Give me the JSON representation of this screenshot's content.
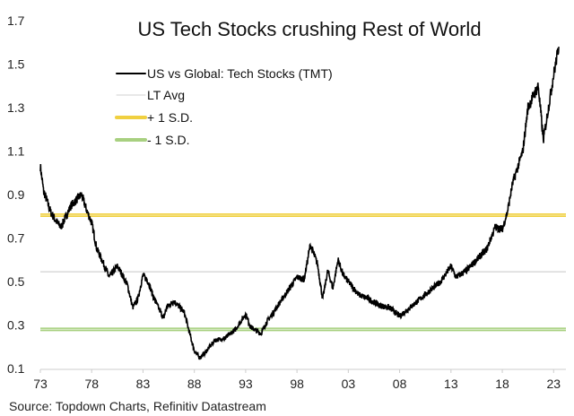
{
  "chart_data": {
    "type": "line",
    "title": "US Tech Stocks crushing Rest of World",
    "source": "Source: Topdown Charts, Refinitiv Datastream",
    "xlim": [
      1973,
      2023.5
    ],
    "ylim": [
      0.1,
      1.7
    ],
    "x_tick_labels": [
      "73",
      "78",
      "83",
      "88",
      "93",
      "98",
      "03",
      "08",
      "13",
      "18",
      "23"
    ],
    "x_tick_values": [
      1973,
      1978,
      1983,
      1988,
      1993,
      1998,
      2003,
      2008,
      2013,
      2018,
      2023
    ],
    "y_ticks": [
      "0.1",
      "0.3",
      "0.5",
      "0.7",
      "0.9",
      "1.1",
      "1.3",
      "1.5",
      "1.7"
    ],
    "grid": false,
    "legend_placement": "top-left",
    "series": [
      {
        "name": "US vs Global: Tech Stocks (TMT)",
        "color": "#000000",
        "x": [
          1973.0,
          1973.3,
          1974,
          1974.5,
          1975,
          1976,
          1977,
          1977.5,
          1978,
          1978.5,
          1979,
          1979.7,
          1980.5,
          1981,
          1981.5,
          1982,
          1982.5,
          1983,
          1983.5,
          1984,
          1985,
          1985.3,
          1986,
          1987,
          1987.5,
          1988,
          1988.5,
          1989,
          1990,
          1991,
          1992,
          1993,
          1993.5,
          1994.5,
          1995,
          1996,
          1997,
          1998,
          1998.7,
          1999.3,
          2000,
          2000.5,
          2001,
          2001.5,
          2002,
          2002.5,
          2003,
          2004,
          2005,
          2006,
          2007,
          2008,
          2009,
          2010,
          2011,
          2012,
          2013,
          2013.5,
          2014.5,
          2015.5,
          2016.5,
          2017.3,
          2018,
          2018.5,
          2019,
          2020,
          2020.5,
          2021,
          2021.5,
          2022,
          2022.5,
          2023,
          2023.5
        ],
        "y": [
          1.03,
          0.92,
          0.82,
          0.78,
          0.75,
          0.85,
          0.9,
          0.83,
          0.77,
          0.65,
          0.6,
          0.52,
          0.57,
          0.53,
          0.48,
          0.38,
          0.42,
          0.53,
          0.5,
          0.43,
          0.33,
          0.38,
          0.41,
          0.36,
          0.27,
          0.18,
          0.15,
          0.17,
          0.23,
          0.24,
          0.28,
          0.35,
          0.29,
          0.26,
          0.31,
          0.38,
          0.45,
          0.52,
          0.51,
          0.67,
          0.58,
          0.42,
          0.55,
          0.47,
          0.6,
          0.53,
          0.5,
          0.44,
          0.42,
          0.39,
          0.38,
          0.34,
          0.38,
          0.42,
          0.46,
          0.5,
          0.57,
          0.52,
          0.55,
          0.6,
          0.65,
          0.75,
          0.74,
          0.82,
          0.95,
          1.1,
          1.3,
          1.35,
          1.4,
          1.15,
          1.3,
          1.45,
          1.58
        ]
      },
      {
        "name": "LT Avg",
        "color": "#d0d0d0",
        "value": 0.545
      },
      {
        "name": "+ 1 S.D.",
        "color": "#f0d040",
        "value": 0.805
      },
      {
        "name": "- 1 S.D.",
        "color": "#a8d080",
        "value": 0.28
      }
    ]
  }
}
